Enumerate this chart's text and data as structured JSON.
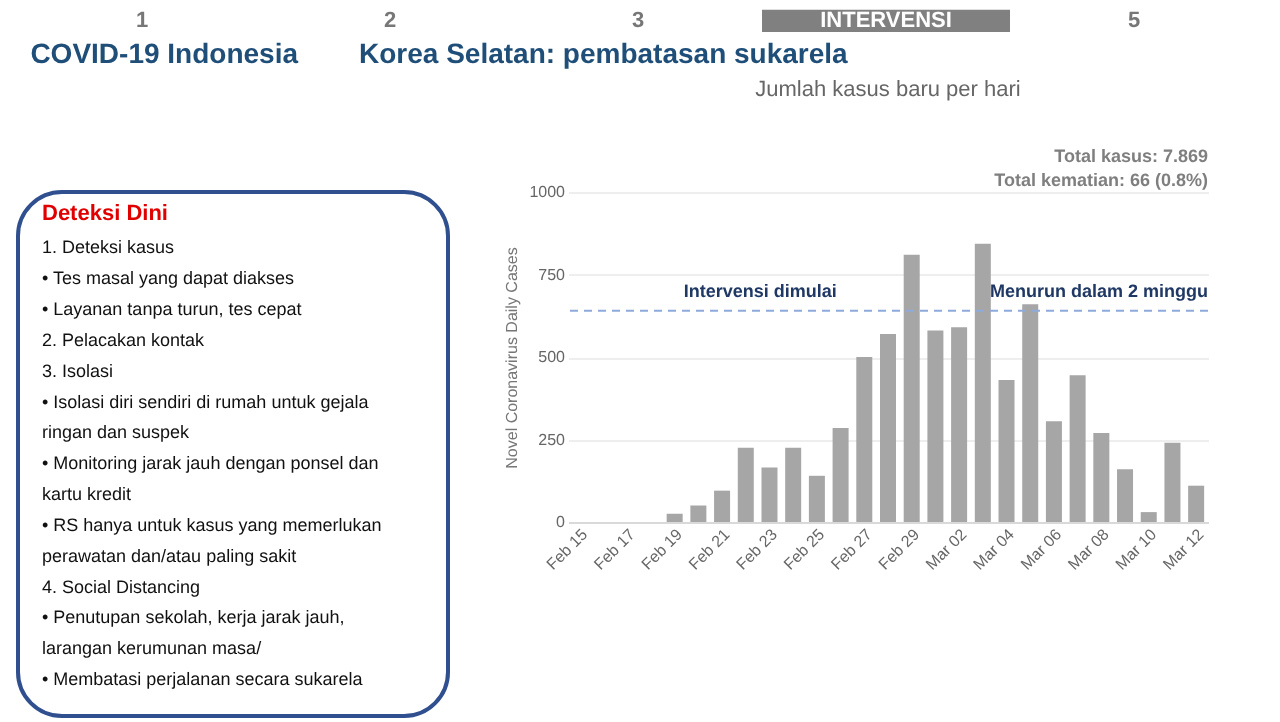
{
  "chart_data": [
    {
      "type": "other",
      "annotations": [
        "1",
        "2",
        "3",
        "INTERVENSI",
        "5",
        "COVID-19 Indonesia",
        "Korea Selatan: pembatasan sukarela"
      ]
    },
    {
      "type": "other",
      "title": "Deteksi Dini",
      "annotations": [
        "1. Deteksi kasus",
        "•  Tes masal yang dapat diakses",
        "•  Layanan tanpa turun, tes cepat",
        "2. Pelacakan kontak",
        "3. Isolasi",
        "•  Isolasi diri sendiri di rumah untuk gejala",
        "    ringan dan suspek",
        "•  Monitoring jarak jauh dengan ponsel dan",
        "    kartu kredit",
        "•  RS hanya untuk kasus yang memerlukan",
        "    perawatan dan/atau paling sakit",
        "4. Social Distancing",
        "•  Penutupan sekolah, kerja jarak jauh,",
        "    larangan kerumunan masa/",
        "•  Membatasi perjalanan secara sukarela"
      ]
    },
    {
      "type": "bar",
      "title": "Jumlah kasus baru per hari",
      "ylabel": "Novel Coronavirus Daily Cases",
      "categories": [
        "Feb 15",
        null,
        "Feb 17",
        null,
        "Feb 19",
        null,
        "Feb 21",
        null,
        "Feb 23",
        null,
        "Feb 25",
        null,
        "Feb 27",
        null,
        "Feb 29",
        null,
        "Mar 02",
        null,
        "Mar 04",
        null,
        "Mar 06",
        null,
        "Mar 08",
        null,
        "Mar 10",
        null,
        "Mar 12"
      ],
      "values": [
        0,
        0,
        0,
        0,
        25,
        50,
        95,
        225,
        165,
        225,
        140,
        285,
        500,
        570,
        810,
        580,
        590,
        843,
        430,
        660,
        305,
        445,
        270,
        160,
        30,
        240,
        110
      ],
      "color": "#a6a6a6",
      "ylim": [
        0,
        1000
      ],
      "yticks": [
        0,
        250,
        500,
        750,
        {
          "value": 1000,
          "label": "1000"
        }
      ],
      "grid": "y",
      "ref_lines": [
        {
          "axis": "y",
          "value": 640,
          "color": "#8eaadb",
          "line_style": "dashed"
        }
      ],
      "annotations": [
        "Total kasus: 7.869",
        "Total kematian: 66 (0.8%)",
        "Intervensi dimulai",
        "Menurun dalam 2 minggu"
      ]
    }
  ]
}
